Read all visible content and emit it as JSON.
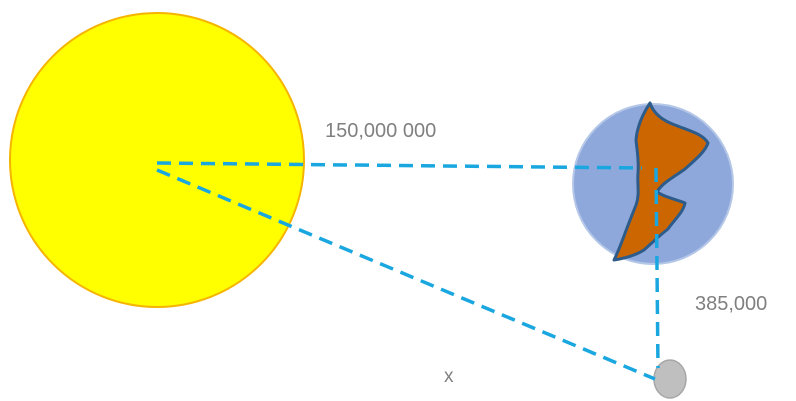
{
  "labels": {
    "sun_earth_distance": "150,000 000",
    "earth_moon_distance": "385,000",
    "unknown_distance": "x"
  },
  "colors": {
    "sun_fill": "#ffff00",
    "sun_stroke": "#f5b400",
    "earth_fill": "#8fa8dc",
    "earth_stroke": "#b4c7e7",
    "land_fill": "#cc6600",
    "land_stroke": "#2e5c8a",
    "moon_fill": "#bfbfbf",
    "moon_stroke": "#a6a6a6",
    "dashed_line": "#1aa7e0",
    "label_text": "#808080"
  }
}
